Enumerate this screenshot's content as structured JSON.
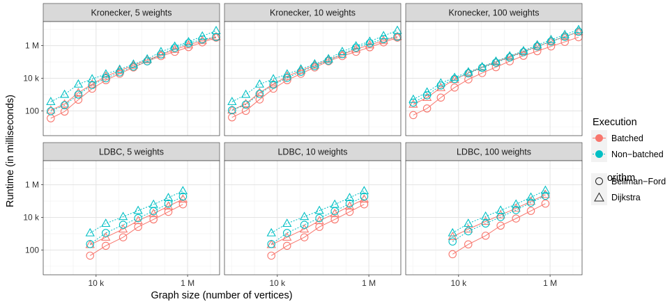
{
  "chart_data": {
    "type": "scatter",
    "xlabel": "Graph size (number of vertices)",
    "ylabel": "Runtime (in milliseconds)",
    "x_scale": "log",
    "y_scale": "log",
    "x_ticks": [
      {
        "value": 10000,
        "label": "10 k"
      },
      {
        "value": 1000000,
        "label": "1 M"
      }
    ],
    "y_ticks": [
      {
        "value": 100,
        "label": "100"
      },
      {
        "value": 10000,
        "label": "10 k"
      },
      {
        "value": 1000000,
        "label": "1 M"
      }
    ],
    "xlim": [
      700,
      5000000
    ],
    "ylim": [
      3,
      30000000
    ],
    "grid": true,
    "colors": {
      "Batched": "#F8766D",
      "Non-batched": "#00BFC4",
      "Both": "#9e9e9e"
    },
    "legend": {
      "position": "right",
      "execution_title": "Execution",
      "execution_items": [
        {
          "label": "Batched",
          "color": "#F8766D"
        },
        {
          "label": "Non−batched",
          "color": "#00BFC4"
        }
      ],
      "algorithm_title": "Algorithm",
      "algorithm_items": [
        {
          "label": "Bellman−Ford",
          "shape": "circle"
        },
        {
          "label": "Dijkstra",
          "shape": "triangle"
        }
      ]
    },
    "panels": [
      {
        "title": "Kronecker, 5 weights",
        "x": [
          1024,
          2048,
          4096,
          8192,
          16384,
          32768,
          65536,
          131072,
          262144,
          524288,
          1048576,
          2097152,
          4194304
        ],
        "series": [
          {
            "execution": "Batched",
            "algorithm": "Bellman-Ford",
            "y": [
              35,
              90,
              480,
              2300,
              7600,
              19000,
              46000,
              110000,
              230000,
              420000,
              820000,
              1600000,
              3100000
            ]
          },
          {
            "execution": "Batched",
            "algorithm": "Dijkstra",
            "y": [
              110,
              260,
              1300,
              4300,
              13000,
              29000,
              61000,
              135000,
              270000,
              580000,
              1100000,
              2000000,
              3500000
            ]
          },
          {
            "execution": "Non-batched",
            "algorithm": "Bellman-Ford",
            "y": [
              95,
              220,
              1000,
              3800,
              10000,
              23000,
              52000,
              110000,
              290000,
              720000,
              1400000,
              2400000,
              3400000
            ]
          },
          {
            "execution": "Non-batched",
            "algorithm": "Dijkstra",
            "y": [
              360,
              1000,
              4300,
              9000,
              18000,
              35000,
              72000,
              150000,
              420000,
              900000,
              1700000,
              3800000,
              8200000
            ]
          }
        ]
      },
      {
        "title": "Kronecker, 10 weights",
        "x": [
          1024,
          2048,
          4096,
          8192,
          16384,
          32768,
          65536,
          131072,
          262144,
          524288,
          1048576,
          2097152,
          4194304
        ],
        "series": [
          {
            "execution": "Batched",
            "algorithm": "Bellman-Ford",
            "y": [
              40,
              100,
              500,
              2300,
              7600,
              19000,
              46000,
              110000,
              230000,
              420000,
              800000,
              1600000,
              3100000
            ]
          },
          {
            "execution": "Batched",
            "algorithm": "Dijkstra",
            "y": [
              110,
              270,
              1300,
              4400,
              13000,
              30000,
              62000,
              140000,
              280000,
              600000,
              1100000,
              2000000,
              3600000
            ]
          },
          {
            "execution": "Non-batched",
            "algorithm": "Bellman-Ford",
            "y": [
              110,
              240,
              1100,
              4000,
              10500,
              25000,
              55000,
              120000,
              300000,
              750000,
              1400000,
              2500000,
              3500000
            ]
          },
          {
            "execution": "Non-batched",
            "algorithm": "Dijkstra",
            "y": [
              360,
              1000,
              4300,
              9000,
              18000,
              36000,
              75000,
              155000,
              430000,
              950000,
              1800000,
              4000000,
              8500000
            ]
          }
        ]
      },
      {
        "title": "Kronecker, 100 weights",
        "x": [
          1024,
          2048,
          4096,
          8192,
          16384,
          32768,
          65536,
          131072,
          262144,
          524288,
          1048576,
          2097152,
          4194304
        ],
        "series": [
          {
            "execution": "Batched",
            "algorithm": "Bellman-Ford",
            "y": [
              55,
              140,
              650,
              2700,
              8500,
              21000,
              48000,
              110000,
              240000,
              460000,
              900000,
              1700000,
              3300000
            ]
          },
          {
            "execution": "Batched",
            "algorithm": "Dijkstra",
            "y": [
              250,
              650,
              2600,
              8200,
              21000,
              48000,
              100000,
              210000,
              430000,
              900000,
              1800000,
              3600000,
              7000000
            ]
          },
          {
            "execution": "Non-batched",
            "algorithm": "Bellman-Ford",
            "y": [
              320,
              900,
              3600,
              9000,
              20000,
              44000,
              90000,
              190000,
              400000,
              900000,
              1800000,
              3500000,
              7200000
            ]
          },
          {
            "execution": "Non-batched",
            "algorithm": "Dijkstra",
            "y": [
              500,
              1400,
              5000,
              11000,
              24000,
              50000,
              110000,
              230000,
              480000,
              1100000,
              2300000,
              4700000,
              9500000
            ]
          }
        ]
      },
      {
        "title": "LDBC, 5 weights",
        "x": [
          7400,
          16300,
          39000,
          83000,
          180000,
          380000,
          790000
        ],
        "series": [
          {
            "execution": "Batched",
            "algorithm": "Bellman-Ford",
            "y": [
              45,
              180,
              600,
              2600,
              7500,
              22000,
              63000
            ]
          },
          {
            "execution": "Batched",
            "algorithm": "Dijkstra",
            "y": [
              210,
              600,
              1900,
              6200,
              17000,
              48000,
              130000
            ]
          },
          {
            "execution": "Non-batched",
            "algorithm": "Bellman-Ford",
            "y": [
              230,
              1100,
              3500,
              9000,
              24000,
              70000,
              190000
            ]
          },
          {
            "execution": "Non-batched",
            "algorithm": "Dijkstra",
            "y": [
              1100,
              4200,
              11000,
              26000,
              62000,
              160000,
              420000
            ]
          }
        ]
      },
      {
        "title": "LDBC, 10 weights",
        "x": [
          7400,
          16300,
          39000,
          83000,
          180000,
          380000,
          790000
        ],
        "series": [
          {
            "execution": "Batched",
            "algorithm": "Bellman-Ford",
            "y": [
              45,
              180,
              600,
              2600,
              7500,
              22000,
              63000
            ]
          },
          {
            "execution": "Batched",
            "algorithm": "Dijkstra",
            "y": [
              210,
              600,
              1900,
              6200,
              17000,
              48000,
              130000
            ]
          },
          {
            "execution": "Non-batched",
            "algorithm": "Bellman-Ford",
            "y": [
              230,
              1100,
              3500,
              9000,
              24000,
              70000,
              190000
            ]
          },
          {
            "execution": "Non-batched",
            "algorithm": "Dijkstra",
            "y": [
              1100,
              4200,
              11000,
              26000,
              62000,
              160000,
              420000
            ]
          }
        ]
      },
      {
        "title": "LDBC, 100 weights",
        "x": [
          7400,
          16300,
          39000,
          83000,
          180000,
          380000,
          790000
        ],
        "series": [
          {
            "execution": "Batched",
            "algorithm": "Bellman-Ford",
            "y": [
              55,
              220,
              750,
              3100,
              8500,
              25000,
              70000
            ]
          },
          {
            "execution": "Batched",
            "algorithm": "Dijkstra",
            "y": [
              650,
              1900,
              5600,
              14000,
              36000,
              95000,
              250000
            ]
          },
          {
            "execution": "Non-batched",
            "algorithm": "Bellman-Ford",
            "y": [
              330,
              1400,
              4200,
              10500,
              28000,
              80000,
              210000
            ]
          },
          {
            "execution": "Non-batched",
            "algorithm": "Dijkstra",
            "y": [
              1100,
              4200,
              11500,
              27000,
              64000,
              170000,
              450000
            ]
          }
        ]
      }
    ]
  }
}
